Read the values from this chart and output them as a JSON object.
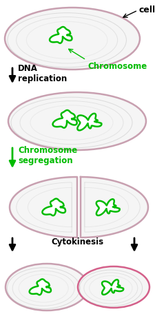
{
  "bg_color": "#ffffff",
  "cell_outline_color": "#c8a0b0",
  "chromosome_color": "#00bb00",
  "arrow_color": "#000000",
  "text_color": "#000000",
  "green_text_color": "#00bb00",
  "cell_fill": "#f5f5f5",
  "sketch_color": "#bbbbbb",
  "labels": {
    "cell": "cell",
    "chromosome": "Chromosome",
    "dna_rep": "DNA\nreplication",
    "chr_seg": "Chromosome\nsegregation",
    "cytokinesis": "Cytokinesis"
  },
  "figsize": [
    2.25,
    4.6
  ],
  "dpi": 100
}
